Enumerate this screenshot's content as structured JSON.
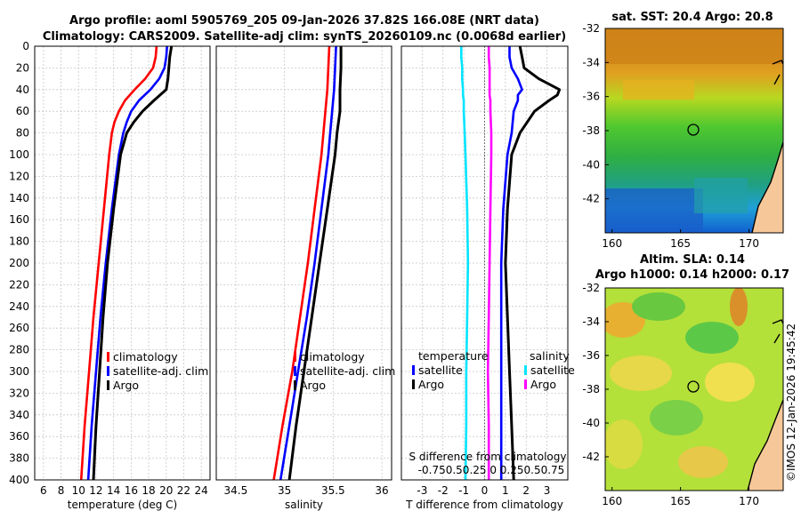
{
  "title": {
    "line1": "Argo profile: aoml 5905769_205 09-Jan-2026 37.82S 166.08E (NRT data)",
    "line2": "Climatology: CARS2009. Satellite-adj clim: synTS_20260109.nc (0.0068d earlier)"
  },
  "colors": {
    "climatology": "#ff0000",
    "satellite": "#0000ff",
    "argo": "#000000",
    "salinity_sat": "#00e5ff",
    "salinity_argo": "#ff00ff"
  },
  "depth_ticks": [
    "0",
    "20",
    "40",
    "60",
    "80",
    "100",
    "120",
    "140",
    "160",
    "180",
    "200",
    "220",
    "240",
    "260",
    "280",
    "300",
    "320",
    "340",
    "360",
    "380",
    "400"
  ],
  "chart_data": [
    {
      "type": "line",
      "name": "temperature-profile",
      "xlabel": "temperature (deg C)",
      "ylabel": "depth",
      "xlim": [
        5,
        25
      ],
      "ylim": [
        400,
        0
      ],
      "xticks": [
        "6",
        "8",
        "10",
        "12",
        "14",
        "16",
        "18",
        "20",
        "22",
        "24"
      ],
      "legend": [
        "climatology",
        "satellite-adj. clim",
        "Argo"
      ],
      "legend_position": "lower-right",
      "depth": [
        0,
        10,
        20,
        30,
        40,
        50,
        60,
        70,
        80,
        100,
        150,
        200,
        250,
        300,
        350,
        400
      ],
      "series": [
        {
          "name": "climatology",
          "values": [
            18.9,
            18.8,
            18.5,
            17.6,
            16.4,
            15.3,
            14.6,
            14.1,
            13.8,
            13.5,
            12.9,
            12.3,
            11.7,
            11.2,
            10.7,
            10.3
          ]
        },
        {
          "name": "satellite-adj. clim",
          "values": [
            20.1,
            20.0,
            19.8,
            19.2,
            18.2,
            16.9,
            16.0,
            15.5,
            15.1,
            14.6,
            13.8,
            13.1,
            12.5,
            12.0,
            11.5,
            11.1
          ]
        },
        {
          "name": "Argo",
          "values": [
            20.6,
            20.4,
            20.3,
            20.2,
            20.0,
            18.6,
            17.3,
            16.3,
            15.5,
            14.8,
            14.0,
            13.3,
            12.8,
            12.4,
            12.0,
            11.7
          ]
        }
      ]
    },
    {
      "type": "line",
      "name": "salinity-profile",
      "xlabel": "salinity",
      "ylabel": "depth",
      "xlim": [
        34.3,
        36.1
      ],
      "ylim": [
        400,
        0
      ],
      "xticks": [
        "34.5",
        "35",
        "35.5",
        "36"
      ],
      "legend": [
        "climatology",
        "satellite-adj. clim",
        "Argo"
      ],
      "legend_position": "lower-right",
      "depth": [
        0,
        20,
        40,
        60,
        80,
        100,
        150,
        200,
        250,
        300,
        350,
        400
      ],
      "series": [
        {
          "name": "climatology",
          "values": [
            35.46,
            35.45,
            35.44,
            35.42,
            35.4,
            35.38,
            35.31,
            35.24,
            35.16,
            35.08,
            34.98,
            34.89
          ]
        },
        {
          "name": "satellite-adj. clim",
          "values": [
            35.53,
            35.52,
            35.51,
            35.49,
            35.47,
            35.45,
            35.38,
            35.31,
            35.23,
            35.14,
            35.05,
            34.96
          ]
        },
        {
          "name": "Argo",
          "values": [
            35.58,
            35.58,
            35.57,
            35.57,
            35.54,
            35.52,
            35.44,
            35.36,
            35.28,
            35.2,
            35.12,
            35.05
          ]
        }
      ]
    },
    {
      "type": "line",
      "name": "difference-profile",
      "xlabel": "T difference from climatology",
      "xlabel2": "S difference from climatology",
      "top_axis_ticks": "-0.750.50.25  0  0.250.50.75",
      "ylabel": "depth",
      "xlim": [
        -4,
        4
      ],
      "ylim": [
        400,
        0
      ],
      "xticks": [
        "-3",
        "-2",
        "-1",
        "0",
        "1",
        "2",
        "3"
      ],
      "legend_temperature": {
        "title": "temperature",
        "items": [
          "satellite",
          "Argo"
        ]
      },
      "legend_salinity": {
        "title": "salinity",
        "items": [
          "satellite",
          "Argo"
        ]
      },
      "depth": [
        0,
        10,
        20,
        30,
        40,
        45,
        50,
        60,
        80,
        100,
        150,
        200,
        250,
        300,
        350,
        400
      ],
      "series": [
        {
          "name": "temperature satellite",
          "values": [
            1.2,
            1.2,
            1.3,
            1.6,
            1.8,
            1.6,
            1.6,
            1.4,
            1.3,
            1.1,
            0.9,
            0.8,
            0.8,
            0.8,
            0.8,
            0.8
          ]
        },
        {
          "name": "temperature Argo",
          "values": [
            1.7,
            1.8,
            1.9,
            2.6,
            3.6,
            3.5,
            3.1,
            2.4,
            1.7,
            1.3,
            1.1,
            1.0,
            1.1,
            1.2,
            1.3,
            1.4
          ]
        },
        {
          "name": "salinity satellite",
          "values": [
            -0.28,
            -0.28,
            -0.27,
            -0.27,
            -0.26,
            -0.26,
            -0.25,
            -0.25,
            -0.24,
            -0.23,
            -0.21,
            -0.2,
            -0.21,
            -0.22,
            -0.22,
            -0.23
          ]
        },
        {
          "name": "salinity Argo",
          "values": [
            0.05,
            0.05,
            0.06,
            0.06,
            0.06,
            0.06,
            0.07,
            0.07,
            0.08,
            0.08,
            0.07,
            0.06,
            0.05,
            0.04,
            0.05,
            0.05
          ]
        }
      ]
    },
    {
      "type": "heatmap",
      "name": "sst-map",
      "title": "sat. SST: 20.4 Argo: 20.8",
      "xticks": [
        "160",
        "165",
        "170"
      ],
      "yticks": [
        "-32",
        "-34",
        "-36",
        "-38",
        "-40",
        "-42"
      ],
      "xlim": [
        159.5,
        172.5
      ],
      "ylim": [
        -44,
        -32
      ],
      "marker": {
        "lon": 166.08,
        "lat": -37.82
      }
    },
    {
      "type": "heatmap",
      "name": "sla-map",
      "title": "Altim. SLA: 0.14",
      "subtitle": "Argo h1000: 0.14 h2000: 0.17",
      "xticks": [
        "160",
        "165",
        "170"
      ],
      "yticks": [
        "-32",
        "-34",
        "-36",
        "-38",
        "-40",
        "-42"
      ],
      "xlim": [
        159.5,
        172.5
      ],
      "ylim": [
        -44,
        -32
      ],
      "marker": {
        "lon": 166.08,
        "lat": -37.82
      }
    }
  ],
  "credit": "©IMOS 12-Jan-2026 19:45:42"
}
